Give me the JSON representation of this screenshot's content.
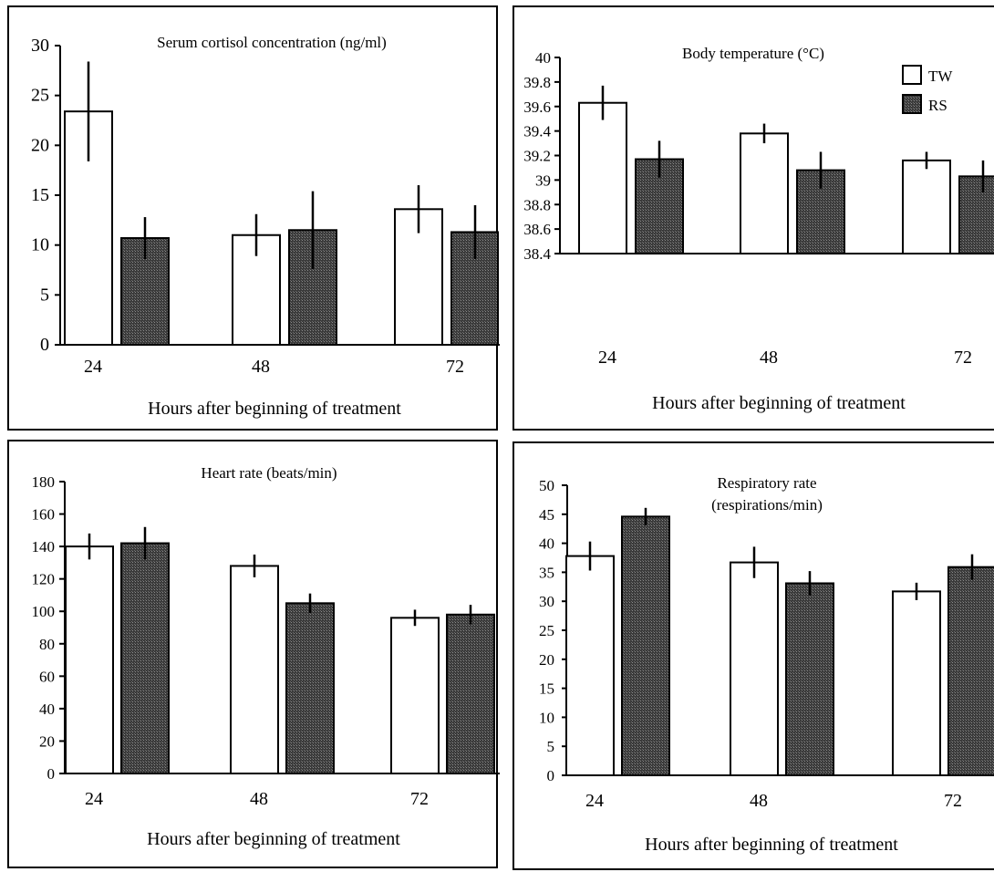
{
  "colors": {
    "tw_fill": "#ffffff",
    "rs_fill": "#3a3a3a",
    "stroke": "#000000"
  },
  "chart_data": [
    {
      "type": "bar",
      "title": "Serum cortisol concentration (ng/ml)",
      "title_lines": [
        "Serum cortisol concentration (ng/ml)"
      ],
      "xlabel": "Hours after beginning of treatment",
      "ylabel": "",
      "categories": [
        "24",
        "48",
        "72"
      ],
      "series": [
        {
          "name": "TW",
          "values": [
            23.4,
            11.0,
            13.6
          ],
          "errors": [
            5.0,
            2.1,
            2.4
          ]
        },
        {
          "name": "RS",
          "values": [
            10.7,
            11.5,
            11.3
          ],
          "errors": [
            2.1,
            3.9,
            2.7
          ]
        }
      ],
      "ylim": [
        0,
        30
      ],
      "yticks": [
        "0",
        "5",
        "10",
        "15",
        "20",
        "25",
        "30"
      ],
      "grid": false,
      "legend": "none"
    },
    {
      "type": "bar",
      "title": "Body temperature (°C)",
      "title_lines": [
        "Body temperature (°C)"
      ],
      "xlabel": "Hours after beginning of treatment",
      "ylabel": "",
      "categories": [
        "24",
        "48",
        "72"
      ],
      "series": [
        {
          "name": "TW",
          "values": [
            39.63,
            39.38,
            39.16
          ],
          "errors": [
            0.14,
            0.08,
            0.07
          ]
        },
        {
          "name": "RS",
          "values": [
            39.17,
            39.08,
            39.03
          ],
          "errors": [
            0.15,
            0.15,
            0.13
          ]
        }
      ],
      "ylim": [
        38.4,
        40
      ],
      "yticks": [
        "38.4",
        "38.6",
        "38.8",
        "39",
        "39.2",
        "39.4",
        "39.6",
        "39.8",
        "40"
      ],
      "grid": false,
      "legend": "top-right",
      "legend_entries": [
        "TW",
        "RS"
      ]
    },
    {
      "type": "bar",
      "title": "Heart rate (beats/min)",
      "title_lines": [
        "Heart rate (beats/min)"
      ],
      "xlabel": "Hours after beginning of treatment",
      "ylabel": "",
      "categories": [
        "24",
        "48",
        "72"
      ],
      "series": [
        {
          "name": "TW",
          "values": [
            140,
            128,
            96
          ],
          "errors": [
            8,
            7,
            5
          ]
        },
        {
          "name": "RS",
          "values": [
            142,
            105,
            98
          ],
          "errors": [
            10,
            6,
            6
          ]
        }
      ],
      "ylim": [
        0,
        180
      ],
      "yticks": [
        "0",
        "20",
        "40",
        "60",
        "80",
        "100",
        "120",
        "140",
        "160",
        "180"
      ],
      "grid": false,
      "legend": "none"
    },
    {
      "type": "bar",
      "title": "Respiratory rate (respirations/min)",
      "title_lines": [
        "Respiratory rate",
        "(respirations/min)"
      ],
      "xlabel": "Hours after beginning of treatment",
      "ylabel": "",
      "categories": [
        "24",
        "48",
        "72"
      ],
      "series": [
        {
          "name": "TW",
          "values": [
            37.8,
            36.7,
            31.7
          ],
          "errors": [
            2.5,
            2.7,
            1.5
          ]
        },
        {
          "name": "RS",
          "values": [
            44.6,
            33.1,
            35.9
          ],
          "errors": [
            1.5,
            2.1,
            2.2
          ]
        }
      ],
      "ylim": [
        0,
        50
      ],
      "yticks": [
        "0",
        "5",
        "10",
        "15",
        "20",
        "25",
        "30",
        "35",
        "40",
        "45",
        "50"
      ],
      "grid": false,
      "legend": "none"
    }
  ]
}
